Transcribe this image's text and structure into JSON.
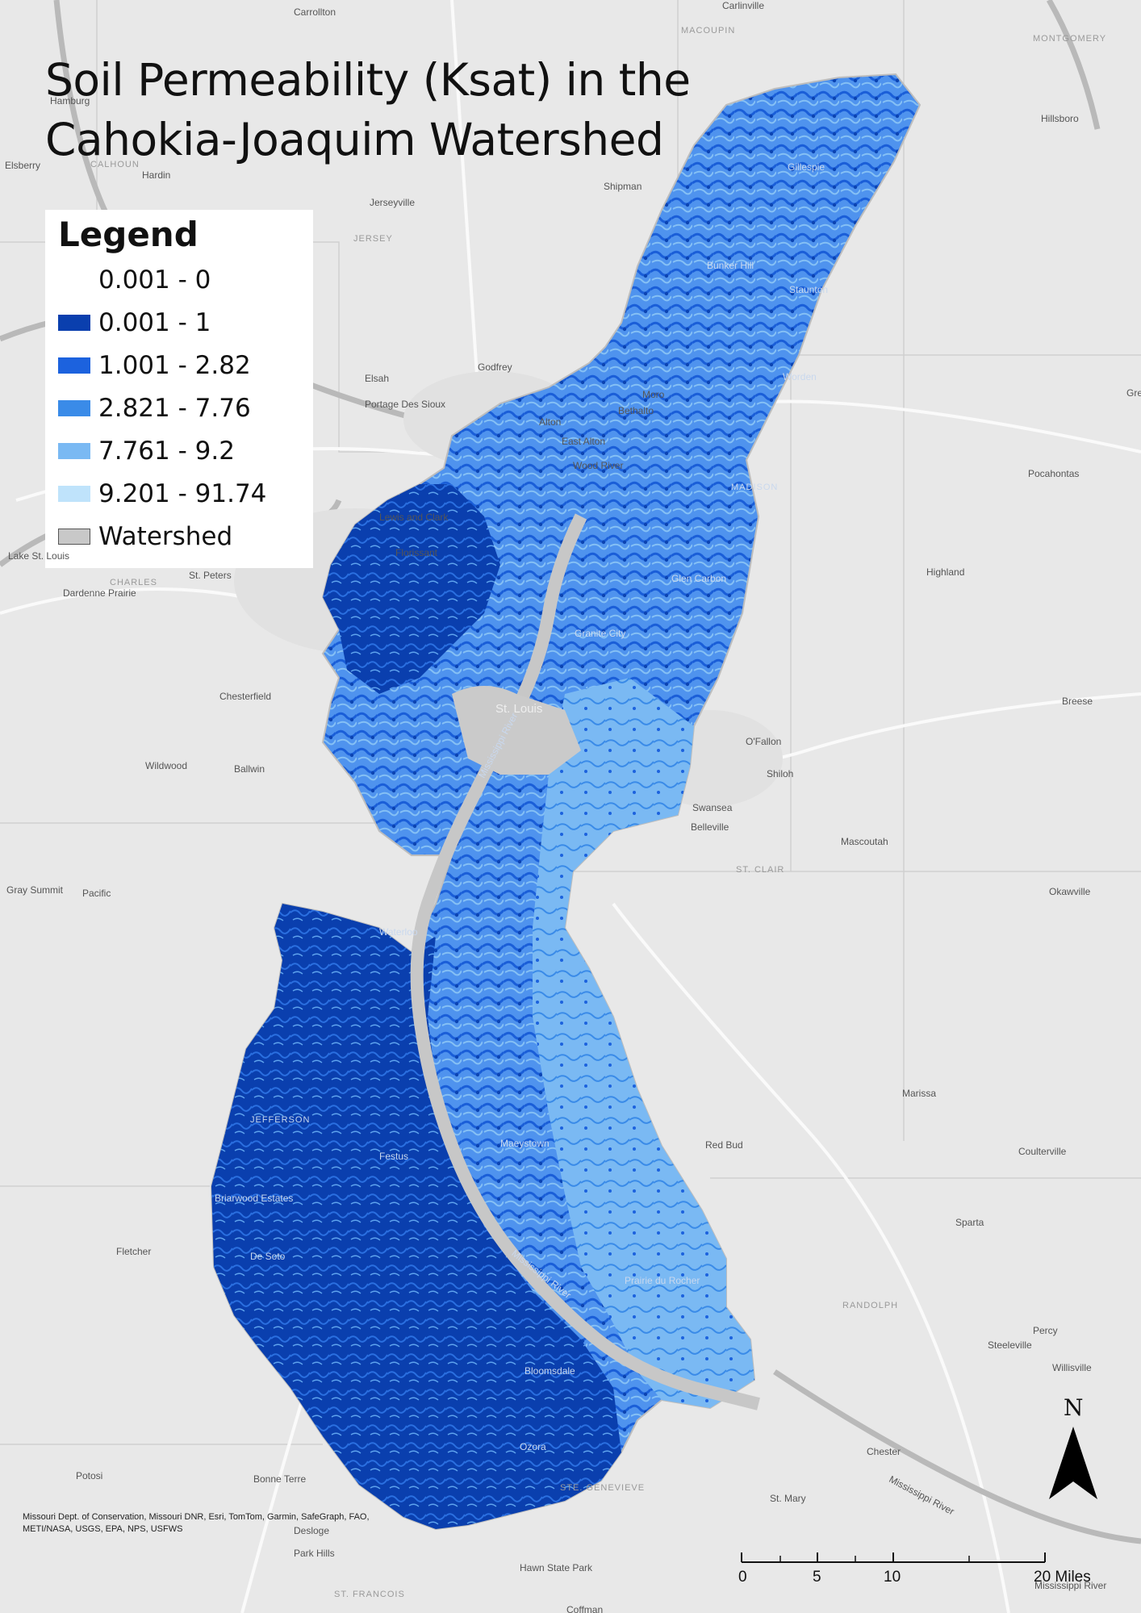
{
  "map": {
    "title_line1": "Soil Permeability (Ksat) in the",
    "title_line2": "Cahokia-Joaquim Watershed",
    "legend": {
      "title": "Legend",
      "items": [
        {
          "label": "0.001 - 0",
          "color": "#ffffff"
        },
        {
          "label": "0.001 - 1",
          "color": "#0a3fae"
        },
        {
          "label": "1.001 - 2.82",
          "color": "#1c62de"
        },
        {
          "label": "2.821 - 7.76",
          "color": "#3a8be8"
        },
        {
          "label": "7.761 - 9.2",
          "color": "#7ab9f3"
        },
        {
          "label": "9.201 - 91.74",
          "color": "#bfe3fb"
        },
        {
          "label": "Watershed",
          "color": "#c8c8c8"
        }
      ]
    },
    "places": [
      "Carrollton",
      "Carlinville",
      "MACOUPIN",
      "MONTGOMERY",
      "Hamburg",
      "Hillsboro",
      "Elsberry",
      "CALHOUN",
      "Hardin",
      "Gillespie",
      "Shipman",
      "Jerseyville",
      "JERSEY",
      "Bunker Hill",
      "Staunton",
      "Godfrey",
      "Elsah",
      "Portage Des Sioux",
      "Worden",
      "Moro",
      "Bethalto",
      "Alton",
      "East Alton",
      "Wood River",
      "Pocahontas",
      "MADISON",
      "Lewis and Clark",
      "Florissant",
      "Glen Carbon",
      "Highland",
      "Lake St. Louis",
      "CHARLES",
      "St. Peters",
      "Dardenne Prairie",
      "Granite City",
      "St. Louis",
      "Chesterfield",
      "Breese",
      "O'Fallon",
      "Wildwood",
      "Ballwin",
      "Shiloh",
      "Swansea",
      "Belleville",
      "Mascoutah",
      "ST. CLAIR",
      "Gray Summit",
      "Pacific",
      "Okawville",
      "Marissa",
      "JEFFERSON",
      "Festus",
      "Waterloo",
      "Maeystown",
      "Red Bud",
      "Coulterville",
      "Sparta",
      "Fletcher",
      "Briarwood Estates",
      "De Soto",
      "Prairie du Rocher",
      "RANDOLPH",
      "Percy",
      "Steeleville",
      "Willisville",
      "Bloomsdale",
      "Chester",
      "Ozora",
      "Potosi",
      "Bonne Terre",
      "STE. GENEVIEVE",
      "St. Mary",
      "Desloge",
      "Park Hills",
      "Hawn State Park",
      "ST. FRANCOIS",
      "Coffman",
      "Mississippi River",
      "Mississippi River",
      "Mississippi River",
      "Mississippi River",
      "Gre"
    ],
    "credits": "Missouri Dept. of Conservation, Missouri DNR, Esri, TomTom, Garmin, SafeGraph, FAO, METI/NASA, USGS, EPA, NPS, USFWS",
    "scale_labels": [
      "0",
      "5",
      "10",
      "20 Miles"
    ],
    "north_label": "N"
  }
}
